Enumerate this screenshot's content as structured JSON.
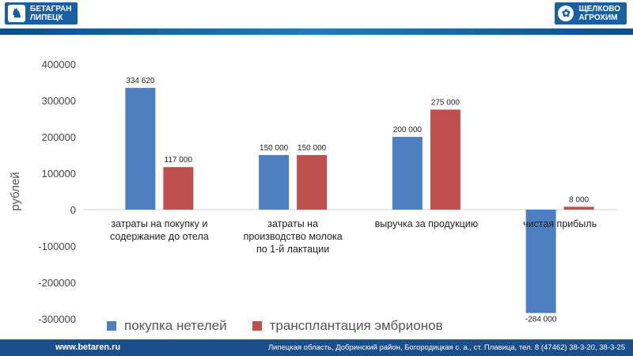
{
  "header": {
    "left_logo_line1": "БЕТАГРАН",
    "left_logo_line2": "ЛИПЕЦК",
    "right_logo_line1": "ЩЕЛКОВО",
    "right_logo_line2": "АГРОХИМ"
  },
  "footer": {
    "site": "www.betaren.ru",
    "address": "Липецкая область, Добринский район, Богородицкая с. а., ст. Плавица, тел. 8 (47462) 38-3-20, 38-3-25"
  },
  "colors": {
    "series1": "#4e7fc0",
    "series2": "#c0504d",
    "brand": "#1b5fa3"
  },
  "chart_data": {
    "type": "bar",
    "ylabel": "рублей",
    "ylim": [
      -300000,
      400000
    ],
    "yticks": [
      "400000",
      "300000",
      "200000",
      "100000",
      "0",
      "-100000",
      "-200000",
      "-300000"
    ],
    "categories": [
      [
        "затраты на покупку и",
        "содержание до отела"
      ],
      [
        "затраты на",
        "производство молока",
        "по 1-й лактации"
      ],
      [
        "выручка за продукцию"
      ],
      [
        "чистая прибыль"
      ]
    ],
    "series": [
      {
        "name": "покупка нетелей",
        "values": [
          334620,
          150000,
          200000,
          -284000
        ],
        "labels": [
          "334 620",
          "150 000",
          "200 000",
          "-284 000"
        ]
      },
      {
        "name": "трансплантация эмбрионов",
        "values": [
          117000,
          150000,
          275000,
          8000
        ],
        "labels": [
          "117 000",
          "150 000",
          "275 000",
          "8 000"
        ]
      }
    ],
    "grid": false,
    "legend": "bottom"
  }
}
